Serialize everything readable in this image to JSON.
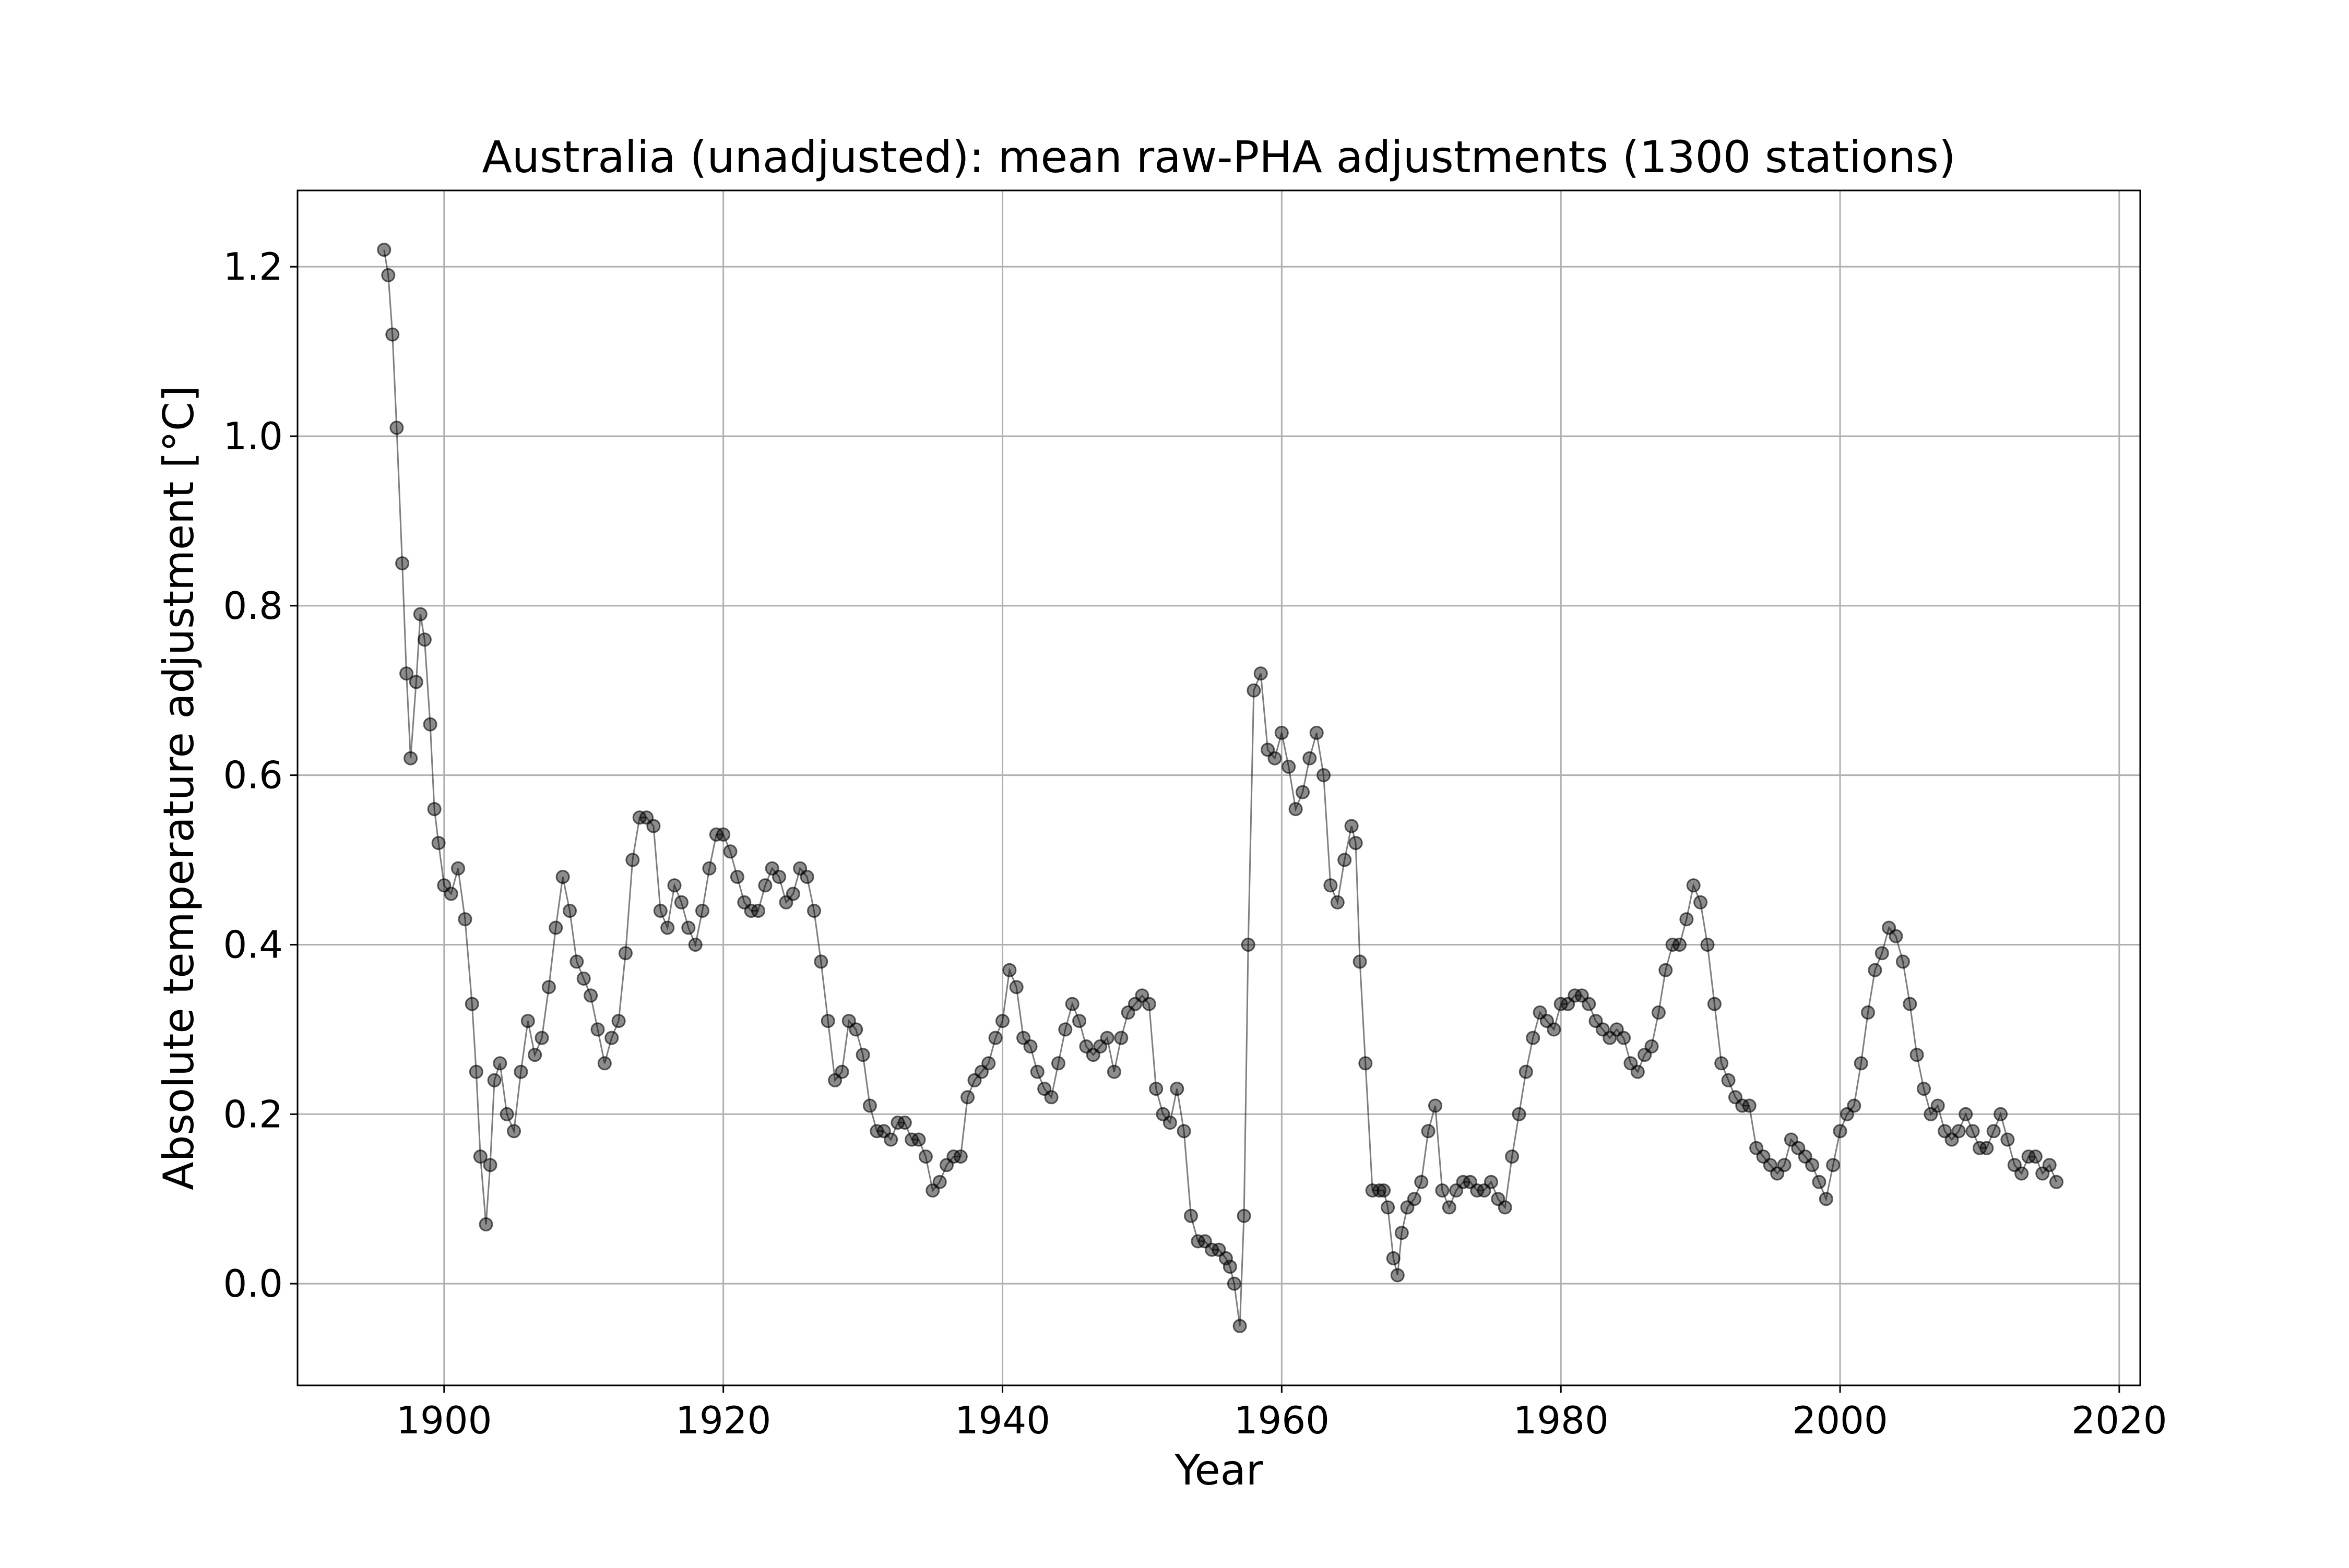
{
  "chart_data": {
    "type": "line",
    "title": "Australia (unadjusted): mean raw-PHA adjustments (1300 stations)",
    "xlabel": "Year",
    "ylabel": "Absolute temperature adjustment [°C]",
    "xlim": [
      1889.5,
      2021.5
    ],
    "ylim": [
      -0.12,
      1.29
    ],
    "x_ticks": [
      1900,
      1920,
      1940,
      1960,
      1980,
      2000,
      2020
    ],
    "y_ticks": [
      0.0,
      0.2,
      0.4,
      0.6,
      0.8,
      1.0,
      1.2
    ],
    "x_tick_labels": [
      "1900",
      "1920",
      "1940",
      "1960",
      "1980",
      "2000",
      "2020"
    ],
    "y_tick_labels": [
      "0.0",
      "0.2",
      "0.4",
      "0.6",
      "0.8",
      "1.0",
      "1.2"
    ],
    "grid": true,
    "legend": "none",
    "style": {
      "line_color": "#000000",
      "marker": "circle",
      "marker_fill": "#000000",
      "marker_alpha": 0.45
    },
    "series": [
      {
        "x": [
          1895.7,
          1896.0,
          1896.3,
          1896.6,
          1897.0,
          1897.3,
          1897.6,
          1898.0,
          1898.3,
          1898.6,
          1899.0,
          1899.3,
          1899.6,
          1900.0,
          1900.5,
          1901.0,
          1901.5,
          1902.0,
          1902.3,
          1902.6,
          1903.0,
          1903.3,
          1903.6,
          1904.0,
          1904.5,
          1905.0,
          1905.5,
          1906.0,
          1906.5,
          1907.0,
          1907.5,
          1908.0,
          1908.5,
          1909.0,
          1909.5,
          1910.0,
          1910.5,
          1911.0,
          1911.5,
          1912.0,
          1912.5,
          1913.0,
          1913.5,
          1914.0,
          1914.5,
          1915.0,
          1915.5,
          1916.0,
          1916.5,
          1917.0,
          1917.5,
          1918.0,
          1918.5,
          1919.0,
          1919.5,
          1920.0,
          1920.5,
          1921.0,
          1921.5,
          1922.0,
          1922.5,
          1923.0,
          1923.5,
          1924.0,
          1924.5,
          1925.0,
          1925.5,
          1926.0,
          1926.5,
          1927.0,
          1927.5,
          1928.0,
          1928.5,
          1929.0,
          1929.5,
          1930.0,
          1930.5,
          1931.0,
          1931.5,
          1932.0,
          1932.5,
          1933.0,
          1933.5,
          1934.0,
          1934.5,
          1935.0,
          1935.5,
          1936.0,
          1936.5,
          1937.0,
          1937.5,
          1938.0,
          1938.5,
          1939.0,
          1939.5,
          1940.0,
          1940.5,
          1941.0,
          1941.5,
          1942.0,
          1942.5,
          1943.0,
          1943.5,
          1944.0,
          1944.5,
          1945.0,
          1945.5,
          1946.0,
          1946.5,
          1947.0,
          1947.5,
          1948.0,
          1948.5,
          1949.0,
          1949.5,
          1950.0,
          1950.5,
          1951.0,
          1951.5,
          1952.0,
          1952.5,
          1953.0,
          1953.5,
          1954.0,
          1954.5,
          1955.0,
          1955.5,
          1956.0,
          1956.3,
          1956.6,
          1957.0,
          1957.3,
          1957.6,
          1958.0,
          1958.5,
          1959.0,
          1959.5,
          1960.0,
          1960.5,
          1961.0,
          1961.5,
          1962.0,
          1962.5,
          1963.0,
          1963.5,
          1964.0,
          1964.5,
          1965.0,
          1965.3,
          1965.6,
          1966.0,
          1966.5,
          1967.0,
          1967.3,
          1967.6,
          1968.0,
          1968.3,
          1968.6,
          1969.0,
          1969.5,
          1970.0,
          1970.5,
          1971.0,
          1971.5,
          1972.0,
          1972.5,
          1973.0,
          1973.5,
          1974.0,
          1974.5,
          1975.0,
          1975.5,
          1976.0,
          1976.5,
          1977.0,
          1977.5,
          1978.0,
          1978.5,
          1979.0,
          1979.5,
          1980.0,
          1980.5,
          1981.0,
          1981.5,
          1982.0,
          1982.5,
          1983.0,
          1983.5,
          1984.0,
          1984.5,
          1985.0,
          1985.5,
          1986.0,
          1986.5,
          1987.0,
          1987.5,
          1988.0,
          1988.5,
          1989.0,
          1989.5,
          1990.0,
          1990.5,
          1991.0,
          1991.5,
          1992.0,
          1992.5,
          1993.0,
          1993.5,
          1994.0,
          1994.5,
          1995.0,
          1995.5,
          1996.0,
          1996.5,
          1997.0,
          1997.5,
          1998.0,
          1998.5,
          1999.0,
          1999.5,
          2000.0,
          2000.5,
          2001.0,
          2001.5,
          2002.0,
          2002.5,
          2003.0,
          2003.5,
          2004.0,
          2004.5,
          2005.0,
          2005.5,
          2006.0,
          2006.5,
          2007.0,
          2007.5,
          2008.0,
          2008.5,
          2009.0,
          2009.5,
          2010.0,
          2010.5,
          2011.0,
          2011.5,
          2012.0,
          2012.5,
          2013.0,
          2013.5,
          2014.0,
          2014.5,
          2015.0,
          2015.5
        ],
        "y": [
          1.22,
          1.19,
          1.12,
          1.01,
          0.85,
          0.72,
          0.62,
          0.71,
          0.79,
          0.76,
          0.66,
          0.56,
          0.52,
          0.47,
          0.46,
          0.49,
          0.43,
          0.33,
          0.25,
          0.15,
          0.07,
          0.14,
          0.24,
          0.26,
          0.2,
          0.18,
          0.25,
          0.31,
          0.27,
          0.29,
          0.35,
          0.42,
          0.48,
          0.44,
          0.38,
          0.36,
          0.34,
          0.3,
          0.26,
          0.29,
          0.31,
          0.39,
          0.5,
          0.55,
          0.55,
          0.54,
          0.44,
          0.42,
          0.47,
          0.45,
          0.42,
          0.4,
          0.44,
          0.49,
          0.53,
          0.53,
          0.51,
          0.48,
          0.45,
          0.44,
          0.44,
          0.47,
          0.49,
          0.48,
          0.45,
          0.46,
          0.49,
          0.48,
          0.44,
          0.38,
          0.31,
          0.24,
          0.25,
          0.31,
          0.3,
          0.27,
          0.21,
          0.18,
          0.18,
          0.17,
          0.19,
          0.19,
          0.17,
          0.17,
          0.15,
          0.11,
          0.12,
          0.14,
          0.15,
          0.15,
          0.22,
          0.24,
          0.25,
          0.26,
          0.29,
          0.31,
          0.37,
          0.35,
          0.29,
          0.28,
          0.25,
          0.23,
          0.22,
          0.26,
          0.3,
          0.33,
          0.31,
          0.28,
          0.27,
          0.28,
          0.29,
          0.25,
          0.29,
          0.32,
          0.33,
          0.34,
          0.33,
          0.23,
          0.2,
          0.19,
          0.23,
          0.18,
          0.08,
          0.05,
          0.05,
          0.04,
          0.04,
          0.03,
          0.02,
          0.0,
          -0.05,
          0.08,
          0.4,
          0.7,
          0.72,
          0.63,
          0.62,
          0.65,
          0.61,
          0.56,
          0.58,
          0.62,
          0.65,
          0.6,
          0.47,
          0.45,
          0.5,
          0.54,
          0.52,
          0.38,
          0.26,
          0.11,
          0.11,
          0.11,
          0.09,
          0.03,
          0.01,
          0.06,
          0.09,
          0.1,
          0.12,
          0.18,
          0.21,
          0.11,
          0.09,
          0.11,
          0.12,
          0.12,
          0.11,
          0.11,
          0.12,
          0.1,
          0.09,
          0.15,
          0.2,
          0.25,
          0.29,
          0.32,
          0.31,
          0.3,
          0.33,
          0.33,
          0.34,
          0.34,
          0.33,
          0.31,
          0.3,
          0.29,
          0.3,
          0.29,
          0.26,
          0.25,
          0.27,
          0.28,
          0.32,
          0.37,
          0.4,
          0.4,
          0.43,
          0.47,
          0.45,
          0.4,
          0.33,
          0.26,
          0.24,
          0.22,
          0.21,
          0.21,
          0.16,
          0.15,
          0.14,
          0.13,
          0.14,
          0.17,
          0.16,
          0.15,
          0.14,
          0.12,
          0.1,
          0.14,
          0.18,
          0.2,
          0.21,
          0.26,
          0.32,
          0.37,
          0.39,
          0.42,
          0.41,
          0.38,
          0.33,
          0.27,
          0.23,
          0.2,
          0.21,
          0.18,
          0.17,
          0.18,
          0.2,
          0.18,
          0.16,
          0.16,
          0.18,
          0.2,
          0.17,
          0.14,
          0.13,
          0.15,
          0.15,
          0.13,
          0.14,
          0.12
        ]
      }
    ]
  }
}
